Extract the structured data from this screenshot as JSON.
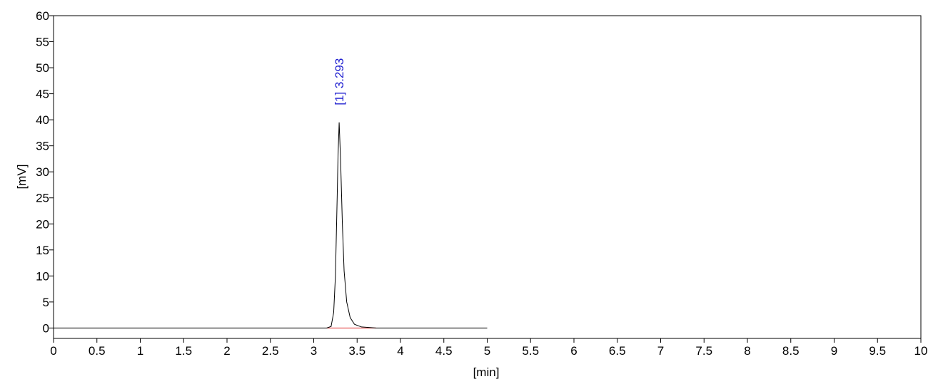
{
  "chart_data": {
    "type": "line",
    "xlabel": "[min]",
    "ylabel": "[mV]",
    "xlim": [
      0,
      10
    ],
    "ylim": [
      -2,
      60
    ],
    "xticks": [
      0,
      0.5,
      1,
      1.5,
      2,
      2.5,
      3,
      3.5,
      4,
      4.5,
      5,
      5.5,
      6,
      6.5,
      7,
      7.5,
      8,
      8.5,
      9,
      9.5,
      10
    ],
    "yticks": [
      0,
      5,
      10,
      15,
      20,
      25,
      30,
      35,
      40,
      45,
      50,
      55,
      60
    ],
    "series": [
      {
        "name": "signal",
        "color": "#000000",
        "x": [
          0,
          3.15,
          3.2,
          3.23,
          3.25,
          3.27,
          3.28,
          3.293,
          3.31,
          3.33,
          3.35,
          3.38,
          3.42,
          3.47,
          3.55,
          3.72,
          5
        ],
        "values": [
          0,
          0,
          0.3,
          3,
          10,
          25,
          33,
          39.5,
          32,
          20,
          11,
          5,
          2,
          0.7,
          0.2,
          0,
          0
        ]
      },
      {
        "name": "baseline",
        "color": "#e03030",
        "x": [
          3.15,
          3.72
        ],
        "values": [
          0,
          0
        ]
      }
    ],
    "annotations": [
      {
        "text": "[1]  3.293",
        "x": 3.293,
        "color": "#2020d0"
      }
    ]
  }
}
